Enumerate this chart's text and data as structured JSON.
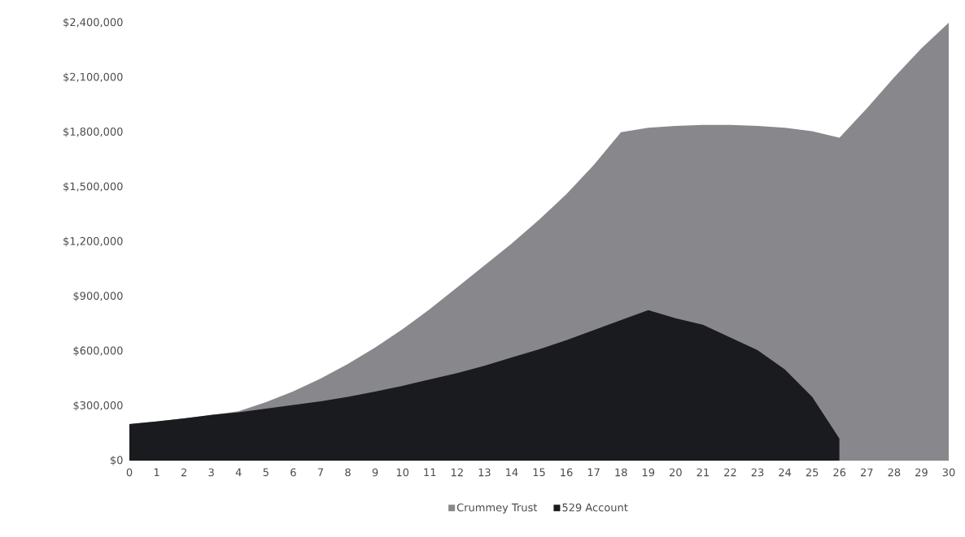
{
  "chart_data": {
    "type": "area",
    "x": [
      0,
      1,
      2,
      3,
      4,
      5,
      6,
      7,
      8,
      9,
      10,
      11,
      12,
      13,
      14,
      15,
      16,
      17,
      18,
      19,
      20,
      21,
      22,
      23,
      24,
      25,
      26,
      27,
      28,
      29,
      30
    ],
    "series": [
      {
        "name": "Crummey Trust",
        "color": "#88878b",
        "values": [
          200000,
          215000,
          232000,
          250000,
          270000,
          320000,
          380000,
          450000,
          530000,
          620000,
          720000,
          830000,
          950000,
          1070000,
          1190000,
          1320000,
          1460000,
          1620000,
          1800000,
          1825000,
          1835000,
          1840000,
          1840000,
          1835000,
          1825000,
          1805000,
          1770000,
          1930000,
          2100000,
          2260000,
          2400000
        ]
      },
      {
        "name": "529 Account",
        "color": "#1a1b1e",
        "x": [
          0,
          1,
          2,
          3,
          4,
          5,
          6,
          7,
          8,
          9,
          10,
          11,
          12,
          13,
          14,
          15,
          16,
          17,
          18,
          19,
          20,
          21,
          22,
          23,
          24,
          25,
          26
        ],
        "values": [
          200000,
          215000,
          232000,
          250000,
          265000,
          285000,
          305000,
          325000,
          350000,
          378000,
          410000,
          445000,
          480000,
          520000,
          565000,
          610000,
          660000,
          715000,
          770000,
          825000,
          780000,
          745000,
          675000,
          605000,
          500000,
          350000,
          120000
        ]
      }
    ],
    "xlim": [
      0,
      30
    ],
    "ylim": [
      0,
      2400000
    ],
    "xticks": [
      0,
      1,
      2,
      3,
      4,
      5,
      6,
      7,
      8,
      9,
      10,
      11,
      12,
      13,
      14,
      15,
      16,
      17,
      18,
      19,
      20,
      21,
      22,
      23,
      24,
      25,
      26,
      27,
      28,
      29,
      30
    ],
    "yticks": [
      {
        "value": 0,
        "label": "$0"
      },
      {
        "value": 300000,
        "label": "$300,000"
      },
      {
        "value": 600000,
        "label": "$600,000"
      },
      {
        "value": 900000,
        "label": "$900,000"
      },
      {
        "value": 1200000,
        "label": "$1,200,000"
      },
      {
        "value": 1500000,
        "label": "$1,500,000"
      },
      {
        "value": 1800000,
        "label": "$1,800,000"
      },
      {
        "value": 2100000,
        "label": "$2,100,000"
      },
      {
        "value": 2400000,
        "label": "$2,400,000"
      }
    ],
    "legend": "bottom"
  }
}
